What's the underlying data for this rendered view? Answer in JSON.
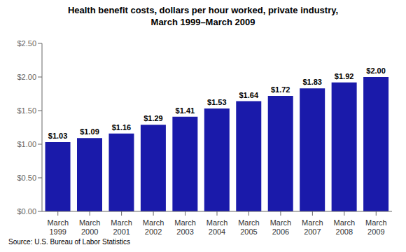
{
  "chart_data": {
    "type": "bar",
    "title": "Health benefit costs, dollars per hour worked, private industry,\nMarch 1999–March 2009",
    "categories": [
      "March\n1999",
      "March\n2000",
      "March\n2001",
      "March\n2002",
      "March\n2003",
      "March\n2004",
      "March\n2005",
      "March\n2006",
      "March\n2007",
      "March\n2008",
      "March\n2009"
    ],
    "values": [
      1.03,
      1.09,
      1.16,
      1.29,
      1.41,
      1.53,
      1.64,
      1.72,
      1.83,
      1.92,
      2.0
    ],
    "value_labels": [
      "$1.03",
      "$1.09",
      "$1.16",
      "$1.29",
      "$1.41",
      "$1.53",
      "$1.64",
      "$1.72",
      "$1.83",
      "$1.92",
      "$2.00"
    ],
    "data_labels": true,
    "color": "#1a1aaa",
    "ylim": [
      0,
      2.5
    ],
    "yticks": [
      {
        "value": 0,
        "label": "$0.00"
      },
      {
        "value": 0.5,
        "label": "$0.50"
      },
      {
        "value": 1,
        "label": "$1.00"
      },
      {
        "value": 1.5,
        "label": "$1.50"
      },
      {
        "value": 2,
        "label": "$2.00"
      },
      {
        "value": 2.5,
        "label": "$2.50"
      }
    ],
    "grid": false,
    "annotations": [
      "Source: U.S. Bureau of Labor Statistics"
    ]
  }
}
